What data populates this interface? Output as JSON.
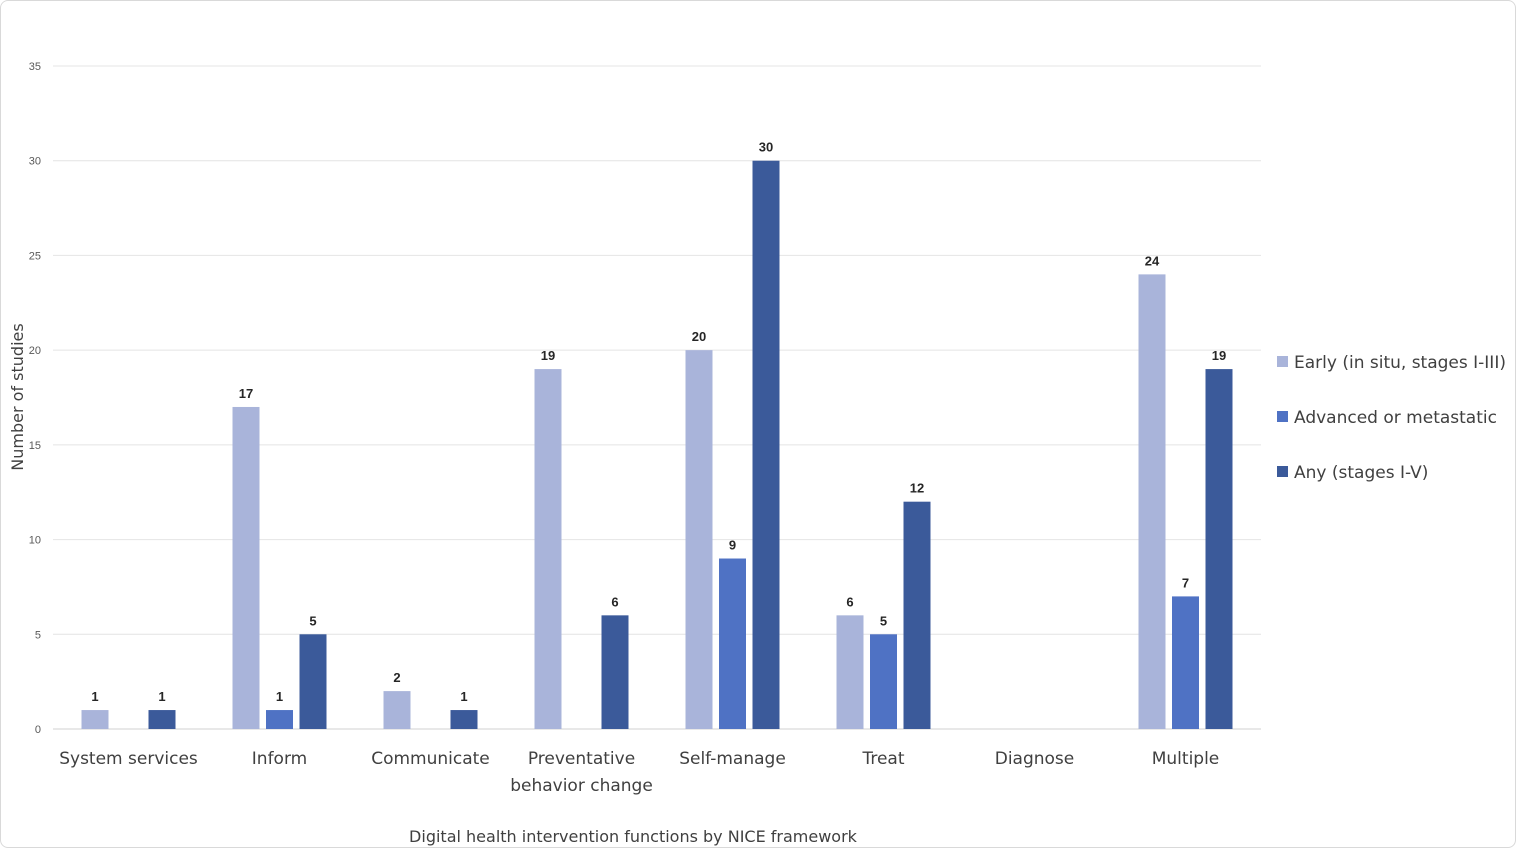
{
  "chart_data": {
    "type": "bar",
    "title": "",
    "xlabel": "Digital health intervention functions by NICE framework",
    "ylabel": "Number of studies",
    "ylim": [
      0,
      35
    ],
    "yticks": [
      "0",
      "5",
      "10",
      "15",
      "20",
      "25",
      "30",
      "35"
    ],
    "grid": true,
    "legend_position": "right",
    "categories": [
      [
        "System services"
      ],
      [
        "Inform"
      ],
      [
        "Communicate"
      ],
      [
        "Preventative",
        "behavior change"
      ],
      [
        "Self-manage"
      ],
      [
        "Treat"
      ],
      [
        "Diagnose"
      ],
      [
        "Multiple"
      ]
    ],
    "series": [
      {
        "name": "Early (in situ, stages I-III)",
        "color": "#a9b4da",
        "values": [
          1,
          17,
          2,
          19,
          20,
          6,
          null,
          24
        ]
      },
      {
        "name": "Advanced or metastatic",
        "color": "#4f72c4",
        "values": [
          null,
          1,
          null,
          null,
          9,
          5,
          null,
          7
        ]
      },
      {
        "name": "Any (stages I-V)",
        "color": "#3b5a9a",
        "values": [
          1,
          5,
          1,
          6,
          30,
          12,
          null,
          19
        ]
      }
    ]
  }
}
